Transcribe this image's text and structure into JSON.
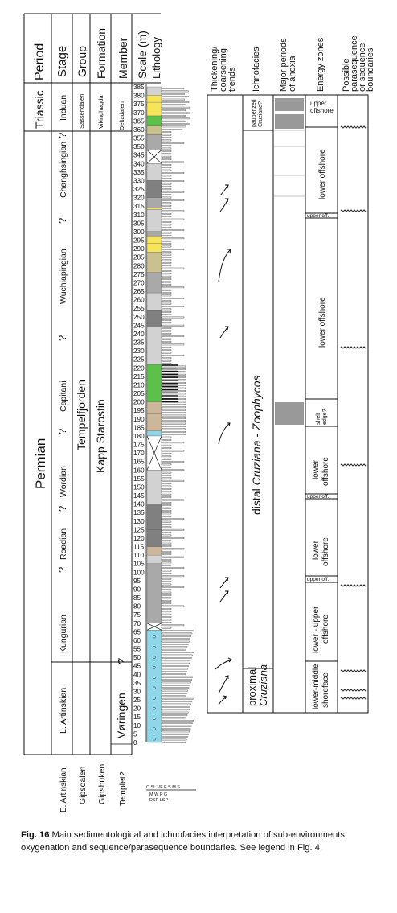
{
  "headers": {
    "period": "Period",
    "stage": "Stage",
    "group": "Group",
    "formation": "Formation",
    "member": "Member",
    "scale": "Scale (m)",
    "lithology": "Lithology",
    "trends": "Thickening/ coarsening trends",
    "ichnofacies": "Ichnofacies",
    "anoxia": "Major periods of anoxia",
    "energy": "Energy zones",
    "parasequence": "Possible parasequence or sequence boundaries"
  },
  "periods": {
    "triassic": "Triassic",
    "permian": "Permian"
  },
  "stages": [
    "Induan",
    "?",
    "Changhsingian",
    "?",
    "Wuchiapingian",
    "?",
    "Capitani",
    "?",
    "Wordian",
    "?",
    "Roadian",
    "?",
    "Kungurian",
    "L. Artinskian",
    "E. Artinskian"
  ],
  "groups": {
    "sassendalen": "Sassendalen",
    "tempelfjorden": "Tempelfjorden",
    "gipsdalen": "Gipsdalen"
  },
  "formations": {
    "vikinghogda": "Vikinghøgda",
    "kapp_starostin": "Kapp Starostin",
    "gipshuken": "Gipshuken"
  },
  "members": {
    "deltadalen": "Deltadalen",
    "voringen": "Vøringen",
    "q": "?",
    "templet": "Templet?"
  },
  "scale_ticks": [
    385,
    380,
    375,
    370,
    365,
    360,
    355,
    350,
    345,
    340,
    335,
    330,
    325,
    320,
    315,
    310,
    305,
    300,
    295,
    290,
    285,
    280,
    275,
    270,
    265,
    260,
    255,
    250,
    245,
    240,
    235,
    230,
    225,
    220,
    215,
    210,
    205,
    200,
    195,
    190,
    185,
    180,
    175,
    170,
    165,
    160,
    155,
    150,
    145,
    140,
    135,
    130,
    125,
    120,
    115,
    110,
    105,
    100,
    95,
    90,
    85,
    80,
    75,
    70,
    65,
    60,
    55,
    50,
    45,
    40,
    35,
    30,
    25,
    20,
    15,
    10,
    5,
    0
  ],
  "lithology_legend": {
    "grain_sizes": "C SL VF F S M S",
    "grain_sizes_2": "M W P G",
    "dsp_lsp": "DSP LSP"
  },
  "ichnofacies": {
    "pauperized": "pauperized",
    "cruziana_q": "Cruziana?",
    "distal": "distal",
    "cruziana": "Cruziana",
    "dash": "-",
    "zoophycos": "Zoophycos",
    "proximal": "proximal"
  },
  "energy_zones": {
    "upper_offshore_top": "upper offshore",
    "lower_offshore_1": "lower offshore",
    "upper_off_1": "upper off.",
    "lower_offshore_2": "lower offshore",
    "shelf_edge": "shelf edge?",
    "lower_offshore_3": "lower offshore",
    "upper_off_2": "upper off.",
    "lower_offshore_4": "lower offshore",
    "upper_off_3": "upper off.",
    "lower_upper_offshore": "lower - upper offshore",
    "lower_middle_shoreface": "lower-middle shoreface"
  },
  "caption": {
    "label": "Fig. 16",
    "text": "Main sedimentological and ichnofacies interpretation of sub-environments, oxygenation and sequence/parasequence boundaries. See legend in Fig. 4."
  },
  "colors": {
    "light_grey": "#d2d2d2",
    "mid_grey": "#a9a9a9",
    "dark_grey": "#808080",
    "yellow": "#f6e45a",
    "olive": "#c9c28e",
    "green": "#5cc04a",
    "tan": "#cdb79a",
    "cyan": "#8fd7e8",
    "anoxia_grey": "#999999"
  }
}
